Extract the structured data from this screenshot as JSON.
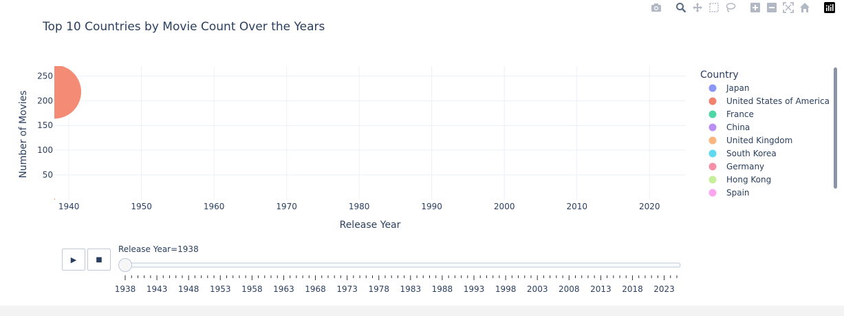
{
  "title": "Top 10 Countries by Movie Count Over the Years",
  "modebar": [
    "camera-icon",
    "zoom-icon",
    "pan-icon",
    "box-select-icon",
    "lasso-icon",
    "zoom-in-icon",
    "zoom-out-icon",
    "autoscale-icon",
    "reset-axes-icon",
    "plotly-logo-icon"
  ],
  "chart_data": {
    "type": "scatter",
    "title": "Top 10 Countries by Movie Count Over the Years",
    "xlabel": "Release Year",
    "ylabel": "Number of Movies",
    "xlim": [
      1938,
      2025
    ],
    "ylim": [
      0,
      270
    ],
    "x_ticks": [
      1940,
      1950,
      1960,
      1970,
      1980,
      1990,
      2000,
      2010,
      2020
    ],
    "y_ticks": [
      50,
      100,
      150,
      200,
      250
    ],
    "grid": true,
    "legend_title": "Country",
    "legend_position": "right",
    "series": [
      {
        "name": "Japan",
        "color": "#8c96f7"
      },
      {
        "name": "United States of America",
        "color": "#f2826b"
      },
      {
        "name": "France",
        "color": "#4fd6a6"
      },
      {
        "name": "China",
        "color": "#b98ef5"
      },
      {
        "name": "United Kingdom",
        "color": "#fdb57e"
      },
      {
        "name": "South Korea",
        "color": "#5fd9ee"
      },
      {
        "name": "Germany",
        "color": "#f78fa6"
      },
      {
        "name": "Hong Kong",
        "color": "#c6ef99"
      },
      {
        "name": "Spain",
        "color": "#fda6f0"
      }
    ],
    "frame_points": [
      {
        "series": "United States of America",
        "x": 1938,
        "y": 218,
        "size": 1.0
      },
      {
        "series": "United States of America",
        "x": 1938,
        "y": 1,
        "size": 0.03
      }
    ]
  },
  "animation": {
    "play_label": "▶",
    "stop_label": "■",
    "current_label": "Release Year=1938",
    "current_year": 1938,
    "range": [
      1938,
      2025
    ],
    "tick_labels": [
      "1938",
      "1943",
      "1948",
      "1953",
      "1958",
      "1963",
      "1968",
      "1973",
      "1978",
      "1983",
      "1988",
      "1993",
      "1998",
      "2003",
      "2008",
      "2013",
      "2018",
      "2023"
    ]
  }
}
